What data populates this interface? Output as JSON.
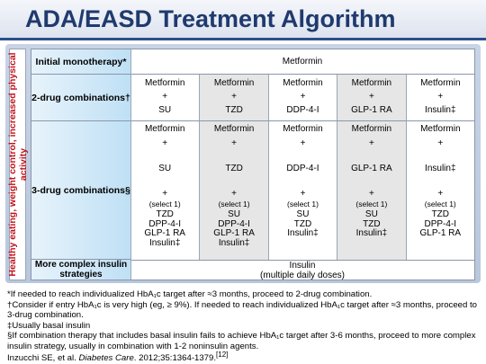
{
  "title": "ADA/EASD Treatment Algorithm",
  "sidebar_label": "Healthy eating, weight control, increased physical activity",
  "rows": {
    "initial": {
      "label": "Initial monotherapy*",
      "value": "Metformin"
    },
    "two_drug": {
      "label": "2-drug combinations†",
      "columns": [
        {
          "top": "Metformin",
          "plus": "+",
          "drug": "SU"
        },
        {
          "top": "Metformin",
          "plus": "+",
          "drug": "TZD"
        },
        {
          "top": "Metformin",
          "plus": "+",
          "drug": "DDP-4-I"
        },
        {
          "top": "Metformin",
          "plus": "+",
          "drug": "GLP-1 RA"
        },
        {
          "top": "Metformin",
          "plus": "+",
          "drug": "Insulin‡"
        }
      ]
    },
    "three_drug": {
      "label": "3-drug combinations§",
      "columns": [
        {
          "top": "Metformin",
          "plus": "+",
          "drug": "SU",
          "plus2": "+",
          "select": "(select 1)",
          "options": [
            "TZD",
            "DPP-4-I",
            "GLP-1 RA",
            "Insulin‡"
          ]
        },
        {
          "top": "Metformin",
          "plus": "+",
          "drug": "TZD",
          "plus2": "+",
          "select": "(select 1)",
          "options": [
            "SU",
            "DPP-4-I",
            "GLP-1 RA",
            "Insulin‡"
          ]
        },
        {
          "top": "Metformin",
          "plus": "+",
          "drug": "DDP-4-I",
          "plus2": "+",
          "select": "(select 1)",
          "options": [
            "SU",
            "TZD",
            "Insulin‡"
          ]
        },
        {
          "top": "Metformin",
          "plus": "+",
          "drug": "GLP-1 RA",
          "plus2": "+",
          "select": "(select 1)",
          "options": [
            "SU",
            "TZD",
            "Insulin‡"
          ]
        },
        {
          "top": "Metformin",
          "plus": "+",
          "drug": "Insulin‡",
          "plus2": "+",
          "select": "(select 1)",
          "options": [
            "TZD",
            "DPP-4-I",
            "GLP-1 RA"
          ]
        }
      ]
    },
    "complex": {
      "label": "More complex insulin strategies",
      "value": "Insulin",
      "value_sub": "(multiple daily doses)"
    }
  },
  "footnotes": [
    "*If needed to reach individualized HbA₁c target after ≈3 months, proceed to 2-drug combination.",
    "†Consider if entry HbA₁c is very high (eg, ≥ 9%). If needed to reach individualized HbA₁c target after ≈3 months, proceed to 3-drug combination.",
    "‡Usually basal insulin",
    "§If combination therapy that includes basal insulin fails to achieve HbA₁c target after 3-6 months, proceed to more complex insulin strategy, usually in combination with 1-2 noninsulin agents."
  ],
  "citation": {
    "authors": "Inzucchi SE, et al.",
    "journal": "Diabetes Care",
    "details": ". 2012;35:1364-1379.",
    "ref": "[12]"
  },
  "colors": {
    "title": "#1f3a6e",
    "sidebar_text": "#c0121a",
    "header_fill": "#bfe0f5",
    "shaded_col": "#e6e6e6"
  }
}
